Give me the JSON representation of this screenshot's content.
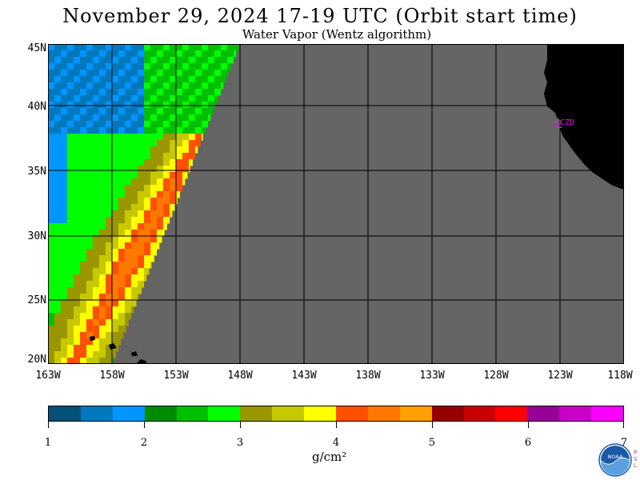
{
  "header": {
    "title": "November 29, 2024  17-19 UTC  (Orbit start time)",
    "subtitle": "Water Vapor (Wentz algorithm)"
  },
  "map": {
    "lat_labels": [
      "45N",
      "40N",
      "35N",
      "30N",
      "25N",
      "20N"
    ],
    "lon_labels": [
      "163W",
      "158W",
      "153W",
      "148W",
      "143W",
      "138W",
      "133W",
      "128W",
      "123W",
      "118W"
    ],
    "station_label": "CZD",
    "colors": {
      "no_data": "#646464",
      "land": "#000000",
      "grid": "#000000",
      "station": "#ff00ff"
    }
  },
  "colorbar": {
    "colors": [
      "#00507a",
      "#0078be",
      "#0096ff",
      "#008c00",
      "#00be00",
      "#00ff00",
      "#9a9600",
      "#c8c800",
      "#ffff00",
      "#ff5000",
      "#ff7800",
      "#ffa000",
      "#960000",
      "#c80000",
      "#ff0000",
      "#960096",
      "#c800c8",
      "#ff00ff"
    ],
    "ticks": [
      "1",
      "2",
      "3",
      "4",
      "5",
      "6",
      "7"
    ],
    "units": "g/cm²"
  },
  "logo": {
    "name": "NOAA",
    "side_text": "PSL"
  }
}
